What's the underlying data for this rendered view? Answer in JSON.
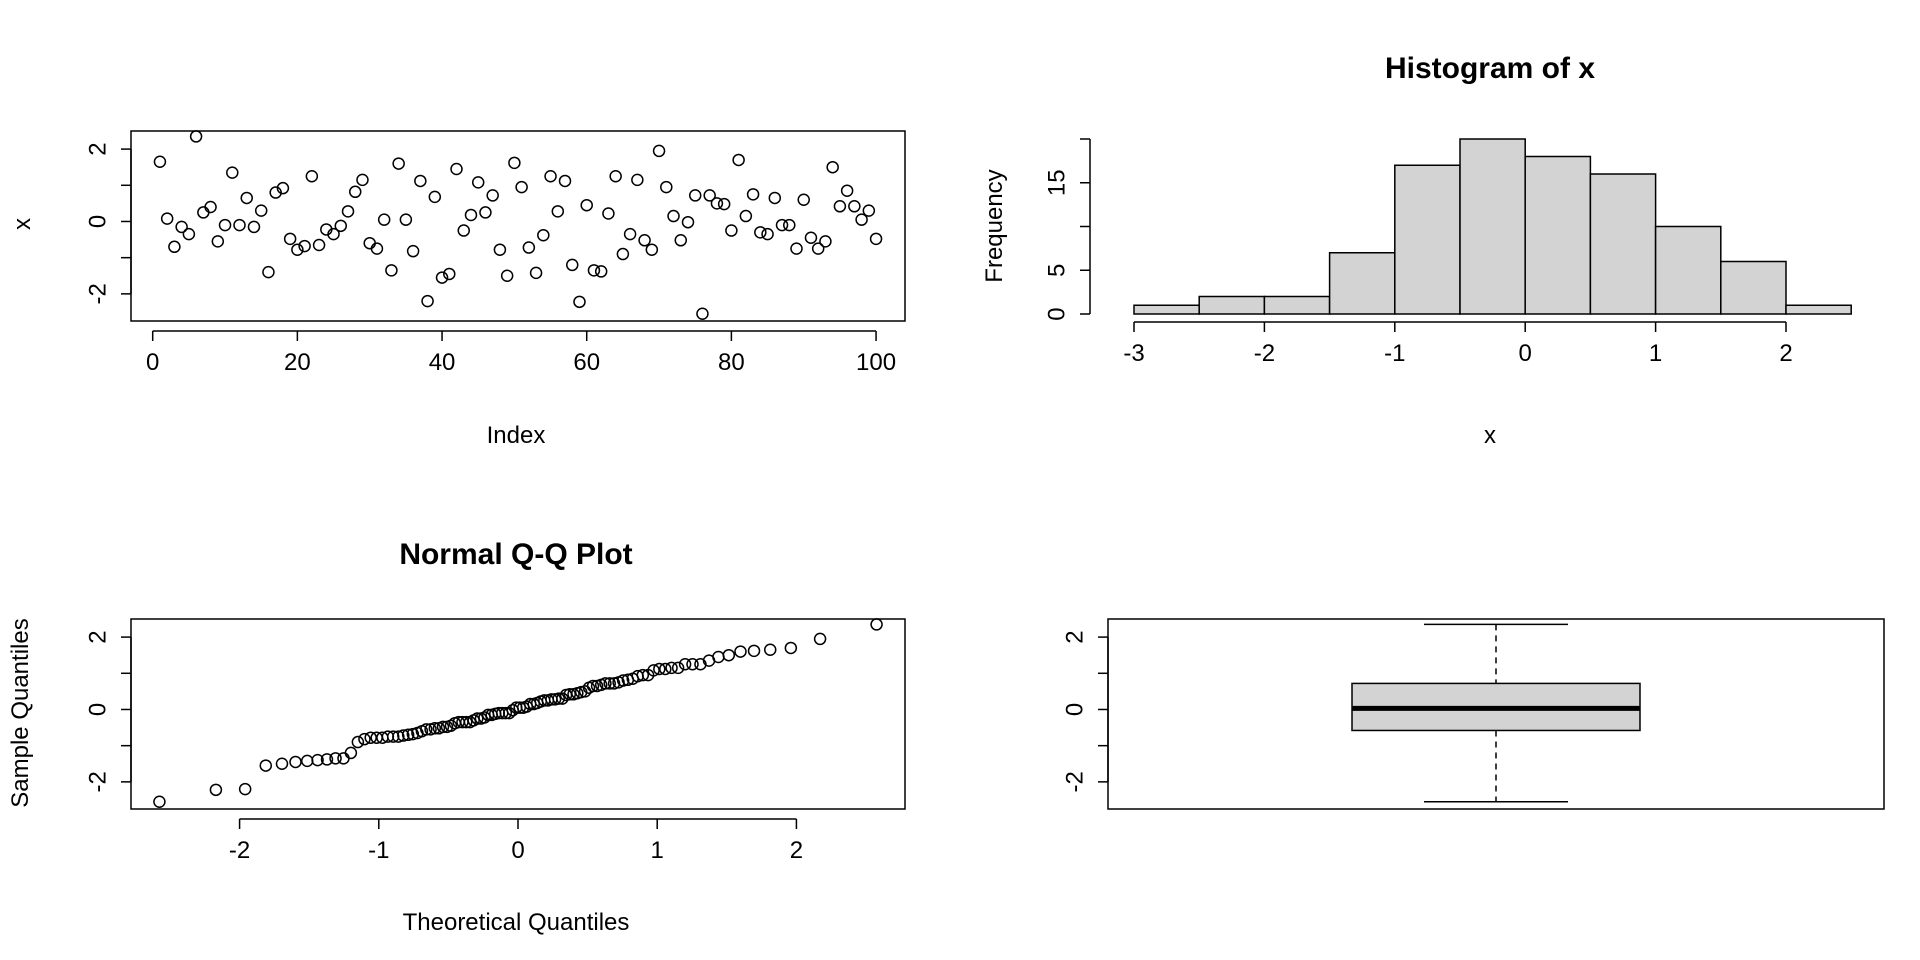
{
  "chart_data": [
    {
      "type": "scatter",
      "title": "",
      "xlabel": "Index",
      "ylabel": "x",
      "xlim": [
        -3,
        104
      ],
      "ylim": [
        -2.75,
        2.5
      ],
      "xticks": [
        0,
        20,
        40,
        60,
        80,
        100
      ],
      "yticks": [
        -2,
        0,
        2
      ],
      "box": true,
      "x": [
        1,
        2,
        3,
        4,
        5,
        6,
        7,
        8,
        9,
        10,
        11,
        12,
        13,
        14,
        15,
        16,
        17,
        18,
        19,
        20,
        21,
        22,
        23,
        24,
        25,
        26,
        27,
        28,
        29,
        30,
        31,
        32,
        33,
        34,
        35,
        36,
        37,
        38,
        39,
        40,
        41,
        42,
        43,
        44,
        45,
        46,
        47,
        48,
        49,
        50,
        51,
        52,
        53,
        54,
        55,
        56,
        57,
        58,
        59,
        60,
        61,
        62,
        63,
        64,
        65,
        66,
        67,
        68,
        69,
        70,
        71,
        72,
        73,
        74,
        75,
        76,
        77,
        78,
        79,
        80,
        81,
        82,
        83,
        84,
        85,
        86,
        87,
        88,
        89,
        90,
        91,
        92,
        93,
        94,
        95,
        96,
        97,
        98,
        99,
        100
      ],
      "y": [
        1.65,
        0.08,
        -0.7,
        -0.15,
        -0.35,
        2.35,
        0.25,
        0.4,
        -0.55,
        -0.1,
        1.35,
        -0.1,
        0.65,
        -0.15,
        0.3,
        -1.4,
        0.8,
        0.92,
        -0.48,
        -0.78,
        -0.68,
        1.25,
        -0.65,
        -0.22,
        -0.35,
        -0.12,
        0.28,
        0.82,
        1.15,
        -0.6,
        -0.75,
        0.05,
        -1.35,
        1.6,
        0.05,
        -0.82,
        1.12,
        -2.2,
        0.68,
        -1.55,
        -1.45,
        1.45,
        -0.25,
        0.18,
        1.08,
        0.25,
        0.72,
        -0.78,
        -1.5,
        1.62,
        0.95,
        -0.72,
        -1.42,
        -0.38,
        1.25,
        0.28,
        1.12,
        -1.2,
        -2.22,
        0.45,
        -1.35,
        -1.38,
        0.22,
        1.25,
        -0.9,
        -0.35,
        1.15,
        -0.52,
        -0.78,
        1.95,
        0.95,
        0.15,
        -0.52,
        -0.02,
        0.72,
        -2.55,
        0.72,
        0.5,
        0.48,
        -0.25,
        1.7,
        0.15,
        0.75,
        -0.3,
        -0.35,
        0.65,
        -0.1,
        -0.1,
        -0.75,
        0.6,
        -0.45,
        -0.75,
        -0.55,
        1.5,
        0.42,
        0.85,
        0.42,
        0.05,
        0.3,
        -0.48
      ]
    },
    {
      "type": "bar",
      "subtype": "histogram",
      "title": "Histogram of x",
      "xlabel": "x",
      "ylabel": "Frequency",
      "breaks": [
        -3,
        -2.5,
        -2,
        -1.5,
        -1,
        -0.5,
        0,
        0.5,
        1,
        1.5,
        2,
        2.5
      ],
      "values": [
        1,
        2,
        2,
        7,
        17,
        20,
        18,
        16,
        10,
        6,
        1
      ],
      "xticks": [
        -3,
        -2,
        -1,
        0,
        1,
        2
      ],
      "yticks": [
        0,
        5,
        15
      ],
      "box": false
    },
    {
      "type": "scatter",
      "title": "Normal Q-Q Plot",
      "xlabel": "Theoretical Quantiles",
      "ylabel": "Sample Quantiles",
      "xlim": [
        -2.78,
        2.78
      ],
      "ylim": [
        -2.75,
        2.5
      ],
      "xticks": [
        -2,
        -1,
        0,
        1,
        2
      ],
      "yticks": [
        -2,
        0,
        2
      ],
      "box": true,
      "x": [],
      "y": []
    },
    {
      "type": "box",
      "title": "",
      "ylim": [
        -2.75,
        2.5
      ],
      "yticks": [
        -2,
        0,
        2
      ],
      "box": true,
      "stats": {
        "min": -2.55,
        "q1": -0.58,
        "median": 0.03,
        "q3": 0.72,
        "max": 2.35
      }
    }
  ],
  "colors": {
    "bar_fill": "#d3d3d3",
    "box_fill": "#d3d3d3",
    "ink": "#000000",
    "background": "#ffffff"
  }
}
